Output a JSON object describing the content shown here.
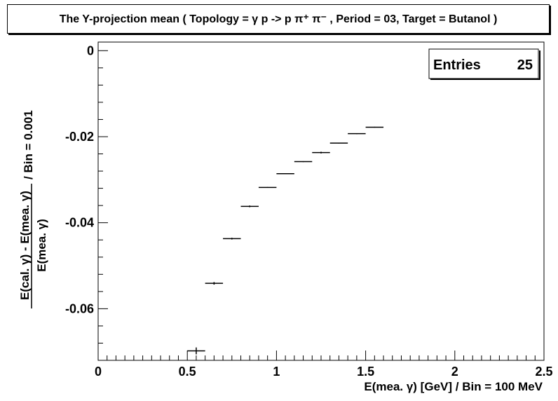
{
  "chart_data": {
    "type": "scatter",
    "title": "The Y-projection mean ( Topology = γ p -> p π⁺ π⁻ , Period = 03, Target = Butanol )",
    "xlabel": "E(mea. γ) [GeV] / Bin = 100 MeV",
    "ylabel_numerator": "E(cal. γ) - E(mea. γ)",
    "ylabel_denominator": "E(mea. γ)",
    "ylabel_suffix": "/ Bin = 0.001",
    "xlim": [
      0,
      2.5
    ],
    "ylim": [
      -0.072,
      0.002
    ],
    "x_ticks": [
      0,
      0.5,
      1,
      1.5,
      2,
      2.5
    ],
    "x_tick_labels": [
      "0",
      "0.5",
      "1",
      "1.5",
      "2",
      "2.5"
    ],
    "y_ticks": [
      0,
      -0.02,
      -0.04,
      -0.06
    ],
    "y_tick_labels": [
      "0",
      "-0.02",
      "-0.04",
      "-0.06"
    ],
    "x_bin_width": 0.1,
    "x": [
      0.55,
      0.65,
      0.75,
      0.85,
      0.95,
      1.05,
      1.15,
      1.25,
      1.35,
      1.45,
      1.55
    ],
    "y": [
      -0.0698,
      -0.0541,
      -0.0437,
      -0.0362,
      -0.0318,
      -0.0286,
      -0.0258,
      -0.0237,
      -0.0215,
      -0.0193,
      -0.0178
    ],
    "y_err": [
      0.0008,
      0.0003,
      0.0002,
      0.0002,
      0.0001,
      0.0001,
      0.0001,
      0.0002,
      0.0001,
      0.0001,
      0.0001
    ],
    "stats": {
      "label": "Entries",
      "value": "25"
    },
    "grid": false,
    "legend": "top-right"
  }
}
